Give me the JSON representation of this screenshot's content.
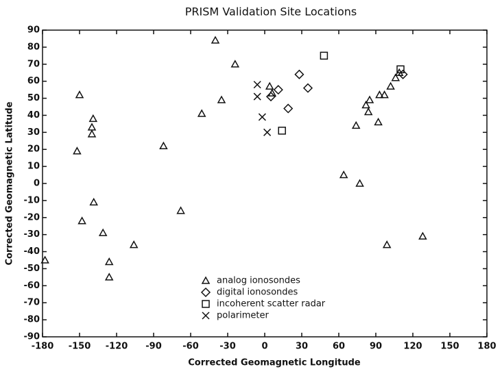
{
  "chart_data": {
    "type": "scatter",
    "title": "PRISM Validation Site Locations",
    "x_label": "Corrected Geomagnetic Longitude",
    "y_label": "Corrected Geomagnetic Latitude",
    "xlim": [
      -180,
      180
    ],
    "xticks": [
      -180,
      -150,
      -120,
      -90,
      -60,
      -30,
      0,
      30,
      60,
      90,
      120,
      150,
      180
    ],
    "ylim": [
      -90,
      90
    ],
    "yticks": [
      -90,
      -80,
      -70,
      -60,
      -50,
      -40,
      -30,
      -20,
      -10,
      0,
      10,
      20,
      30,
      40,
      50,
      60,
      70,
      80,
      90
    ],
    "legend": "lower center",
    "series": [
      {
        "name": "analog ionosondes",
        "marker": "triangle",
        "color": "#111111",
        "x": [
          -178,
          -152,
          -150,
          -139,
          -140,
          -140,
          -138.5,
          -148,
          -131,
          -126,
          -126,
          -106,
          -82,
          -68,
          -51,
          -40,
          -35,
          -24,
          4,
          6,
          64,
          77,
          74,
          82,
          85,
          84,
          92,
          93,
          97,
          99,
          102,
          106,
          109,
          128
        ],
        "y": [
          -45,
          19,
          52,
          38,
          33,
          29,
          -11,
          -22,
          -29,
          -46,
          -55,
          -36,
          22,
          -16,
          41,
          84,
          49,
          70,
          57,
          53,
          5,
          0,
          34,
          46,
          49,
          42,
          36,
          52,
          52,
          -36,
          57,
          62,
          65,
          -31
        ]
      },
      {
        "name": "digital ionosondes",
        "marker": "diamond",
        "color": "#111111",
        "x": [
          5,
          11,
          19,
          28,
          35,
          112
        ],
        "y": [
          51,
          55,
          44,
          64,
          56,
          64
        ]
      },
      {
        "name": "incoherent scatter radar",
        "marker": "square",
        "color": "#111111",
        "x": [
          48,
          14,
          110
        ],
        "y": [
          75,
          31,
          67
        ]
      },
      {
        "name": "polarimeter",
        "marker": "x",
        "color": "#111111",
        "x": [
          -6,
          -6,
          -2,
          2
        ],
        "y": [
          58,
          51,
          39,
          30
        ]
      }
    ]
  }
}
